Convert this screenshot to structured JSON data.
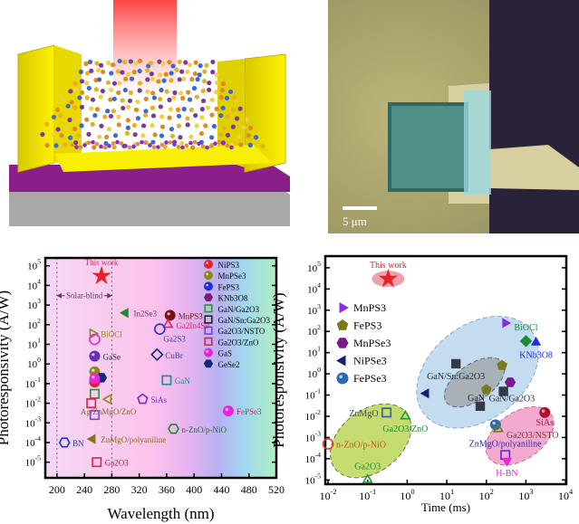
{
  "micrograph": {
    "scale_bar": "5 μm"
  },
  "chart_data": [
    {
      "type": "scatter",
      "title": "",
      "xlabel": "Wavelength (nm)",
      "ylabel": "Photoresponsivity (A/W)",
      "xscale": "linear",
      "yscale": "log",
      "xlim": [
        183,
        520
      ],
      "ylim_log10": [
        -5.8,
        5.4
      ],
      "xticks": [
        "200",
        "240",
        "280",
        "320",
        "360",
        "400",
        "440",
        "480",
        "520"
      ],
      "xtick_values": [
        200,
        240,
        280,
        320,
        360,
        400,
        440,
        480,
        520
      ],
      "yticks": [
        "10^5",
        "10^4",
        "10^3",
        "10^2",
        "10^1",
        "10^0",
        "10^-1",
        "10^-2",
        "10^-3",
        "10^-4",
        "10^-5"
      ],
      "ytick_values": [
        5,
        4,
        3,
        2,
        1,
        0,
        -1,
        -2,
        -3,
        -4,
        -5
      ],
      "annotation": {
        "text": "Solar-blind",
        "from": 200,
        "to": 280,
        "y": 3000
      },
      "legend": {
        "placement": "top-right",
        "entries": [
          {
            "label": "NiPS3",
            "shape": "circle",
            "color": "#e8202a",
            "fill": true
          },
          {
            "label": "MnPSe3",
            "shape": "circle",
            "color": "#8c8a1c",
            "fill": true
          },
          {
            "label": "FePS3",
            "shape": "circle",
            "color": "#1f2fe0",
            "fill": true
          },
          {
            "label": "KNb3O8",
            "shape": "hex",
            "color": "#7a1a7a",
            "fill": true
          },
          {
            "label": "GaN/Ga2O3",
            "shape": "square",
            "color": "#1f9a30",
            "fill": false
          },
          {
            "label": "GaN/Sn:Ga2O3",
            "shape": "square",
            "color": "#222222",
            "fill": false
          },
          {
            "label": "Ga2O3/NSTO",
            "shape": "square",
            "color": "#7b3fe0",
            "fill": false
          },
          {
            "label": "Ga2O3/ZnO",
            "shape": "square",
            "color": "#e0204a",
            "fill": false
          },
          {
            "label": "GaS",
            "shape": "circle",
            "color": "#ee22dd",
            "fill": true
          },
          {
            "label": "GeSe2",
            "shape": "hex",
            "color": "#14287a",
            "fill": true
          }
        ]
      },
      "points": [
        {
          "label": "This work",
          "x": 265,
          "y": 30000,
          "shape": "star",
          "color": "#e8202a",
          "fill": true,
          "label_pos": "top",
          "label_color": "#c0306a"
        },
        {
          "label": "In2Se3",
          "x": 300,
          "y": 400,
          "shape": "tri-left",
          "color": "#1f8a2a",
          "fill": true,
          "label_pos": "right",
          "label_color": "#7a2a7a"
        },
        {
          "label": "MnPS3",
          "x": 365,
          "y": 300,
          "shape": "circle",
          "color": "#7a1010",
          "fill": true,
          "label_pos": "right",
          "label_color": "#7a1010"
        },
        {
          "label": "Ga2In4S9",
          "x": 362,
          "y": 100,
          "shape": "tri-up",
          "color": "#e0206a",
          "fill": false,
          "label_pos": "right",
          "label_color": "#e0206a"
        },
        {
          "label": "Ga2S3",
          "x": 350,
          "y": 60,
          "shape": "circle",
          "color": "#1f2fe0",
          "fill": false,
          "label_pos": "below-right",
          "label_color": "#3040a0"
        },
        {
          "label": "BiOCl",
          "x": 252,
          "y": 35,
          "shape": "tri-right",
          "color": "#8c8a1c",
          "fill": false,
          "label_pos": "right",
          "label_color": "#8c8a1c"
        },
        {
          "label": "",
          "x": 255,
          "y": 18,
          "shape": "circle",
          "color": "#ee22dd",
          "fill": false
        },
        {
          "label": "GaSe",
          "x": 255,
          "y": 2.5,
          "shape": "circle",
          "color": "#6a2ac0",
          "fill": true,
          "label_pos": "right",
          "label_color": "#222244"
        },
        {
          "label": "CuBr",
          "x": 346,
          "y": 3,
          "shape": "diamond",
          "color": "#14287a",
          "fill": false,
          "label_pos": "right",
          "label_color": "#3040a0"
        },
        {
          "label": "",
          "x": 255,
          "y": 0.4,
          "shape": "circle",
          "color": "#8c8a1c",
          "fill": true
        },
        {
          "label": "",
          "x": 265,
          "y": 0.2,
          "shape": "hex",
          "color": "#14287a",
          "fill": true
        },
        {
          "label": "",
          "x": 255,
          "y": 0.12,
          "shape": "circle",
          "color": "#e8202a",
          "fill": true
        },
        {
          "label": "",
          "x": 255,
          "y": 0.18,
          "shape": "circle",
          "color": "#ee22dd",
          "fill": true
        },
        {
          "label": "GaN",
          "x": 360,
          "y": 0.15,
          "shape": "square",
          "color": "#1f8a8a",
          "fill": false,
          "label_pos": "right",
          "label_color": "#1f8a8a"
        },
        {
          "label": "",
          "x": 255,
          "y": 0.03,
          "shape": "square",
          "color": "#1f9a30",
          "fill": false
        },
        {
          "label": "",
          "x": 250,
          "y": 0.01,
          "shape": "square",
          "color": "#e0204a",
          "fill": false
        },
        {
          "label": "Ag/ZnMgO/ZnO",
          "x": 275,
          "y": 0.016,
          "shape": "tri-left",
          "color": "#8c8a1c",
          "fill": false,
          "label_pos": "below",
          "label_color": "#8c6a1c"
        },
        {
          "label": "SiAs",
          "x": 325,
          "y": 0.016,
          "shape": "pentagon",
          "color": "#6a2ae0",
          "fill": false,
          "label_pos": "right",
          "label_color": "#6a2ae0"
        },
        {
          "label": "",
          "x": 255,
          "y": 0.0025,
          "shape": "square",
          "color": "#7b3fe0",
          "fill": false
        },
        {
          "label": "FePSe3",
          "x": 450,
          "y": 0.004,
          "shape": "circle",
          "color": "#ee22dd",
          "fill": true,
          "label_pos": "right",
          "label_color": "#e0206a"
        },
        {
          "label": "n-ZnO/p-NiO",
          "x": 370,
          "y": 0.0005,
          "shape": "hex",
          "color": "#1f8a2a",
          "fill": false,
          "label_pos": "right",
          "label_color": "#1f6a2a"
        },
        {
          "label": "ZnMgO/polyaniline",
          "x": 252,
          "y": 0.00015,
          "shape": "tri-left",
          "color": "#7a7a10",
          "fill": true,
          "label_pos": "right",
          "label_color": "#8c6a1c"
        },
        {
          "label": "BN",
          "x": 211,
          "y": 0.0001,
          "shape": "hex",
          "color": "#1f2fe0",
          "fill": false,
          "label_pos": "right",
          "label_color": "#1f2fe0"
        },
        {
          "label": "Ga2O3",
          "x": 258,
          "y": 1e-05,
          "shape": "square",
          "color": "#e0204a",
          "fill": false,
          "label_pos": "right",
          "label_color": "#a02030"
        }
      ]
    },
    {
      "type": "scatter",
      "title": "",
      "xlabel": "Time (ms)",
      "ylabel": "Photoresponsivity (A/W)",
      "xscale": "log",
      "yscale": "log",
      "xlim_log10": [
        -2.07,
        4.02
      ],
      "ylim_log10": [
        -5.2,
        5.55
      ],
      "xticks": [
        "10^-2",
        "10^-1",
        "10^0",
        "10^1",
        "10^2",
        "10^3",
        "10^4"
      ],
      "xtick_values": [
        -2,
        -1,
        0,
        1,
        2,
        3,
        4
      ],
      "yticks": [
        "10^5",
        "10^4",
        "10^3",
        "10^2",
        "10^1",
        "10^0",
        "10^-1",
        "10^-2",
        "10^-3",
        "10^-4",
        "10^-5"
      ],
      "ytick_values": [
        5,
        4,
        3,
        2,
        1,
        0,
        -1,
        -2,
        -3,
        -4,
        -5
      ],
      "legend": {
        "placement": "top-left",
        "entries": [
          {
            "label": "MnPS3",
            "shape": "tri-right",
            "color": "#8a2ae8",
            "fill": true
          },
          {
            "label": "FePS3",
            "shape": "pentagon",
            "color": "#7a7a1a",
            "fill": true
          },
          {
            "label": "MnPSe3",
            "shape": "hex",
            "color": "#7a1a8a",
            "fill": true
          },
          {
            "label": "NiPSe3",
            "shape": "tri-left",
            "color": "#14207a",
            "fill": true
          },
          {
            "label": "FePSe3",
            "shape": "circle",
            "color": "#2a6ab0",
            "fill": true
          }
        ]
      },
      "points": [
        {
          "label": "This work",
          "x": 0.33,
          "y": 30000,
          "shape": "star",
          "color": "#e8202a",
          "fill": true,
          "label_pos": "top",
          "label_color": "#e8202a"
        },
        {
          "label": "",
          "x": 300,
          "y": 250,
          "shape": "tri-right",
          "color": "#8a2ae8",
          "fill": true
        },
        {
          "label": "BiOCl",
          "x": 1000,
          "y": 35,
          "shape": "diamond",
          "color": "#1f8a3a",
          "fill": true,
          "label_pos": "top",
          "label_color": "#1f8a3a"
        },
        {
          "label": "KNb3O8",
          "x": 1800,
          "y": 30,
          "shape": "tri-up",
          "color": "#1f2fe0",
          "fill": true,
          "label_pos": "below",
          "label_color": "#1f2fe0"
        },
        {
          "label": "",
          "x": 250,
          "y": 2.5,
          "shape": "pentagon",
          "color": "#7a7a1a",
          "fill": true
        },
        {
          "label": "",
          "x": 100,
          "y": 0.18,
          "shape": "pentagon",
          "color": "#7a7a1a",
          "fill": true
        },
        {
          "label": "",
          "x": 400,
          "y": 0.4,
          "shape": "hex",
          "color": "#7a1a8a",
          "fill": true
        },
        {
          "label": "",
          "x": 3,
          "y": 0.12,
          "shape": "tri-left",
          "color": "#14207a",
          "fill": true
        },
        {
          "label": "GaN/Sn:Ga2O3",
          "x": 17,
          "y": 3,
          "shape": "square",
          "color": "#333a44",
          "fill": true,
          "label_pos": "below",
          "label_color": "#222a3a"
        },
        {
          "label": "GaN/Ga2O3",
          "x": 270,
          "y": 0.15,
          "shape": "square",
          "color": "#333a44",
          "fill": true,
          "label_pos": "below",
          "label_color": "#222a3a"
        },
        {
          "label": "GaN",
          "x": 70,
          "y": 0.03,
          "shape": "square",
          "color": "#333a44",
          "fill": true,
          "label_pos": "above-left",
          "label_color": "#222a3a"
        },
        {
          "label": "ZnMgO",
          "x": 0.3,
          "y": 0.015,
          "shape": "square",
          "color": "#3a5a9a",
          "fill": false,
          "label_pos": "left",
          "label_color": "#3a4a6a"
        },
        {
          "label": "Ga2O3/ZnO",
          "x": 0.9,
          "y": 0.01,
          "shape": "tri-up",
          "color": "#1f9a30",
          "fill": false,
          "label_pos": "below",
          "label_color": "#1f8a30"
        },
        {
          "label": "n-ZnO/p-NiO",
          "x": 0.01,
          "y": 0.0005,
          "shape": "circle",
          "color": "#e04020",
          "fill": false,
          "label_pos": "right",
          "label_color": "#c05a20"
        },
        {
          "label": "Ga2O3",
          "x": 0.1,
          "y": 1e-05,
          "shape": "tri-up",
          "color": "#1f9a30",
          "fill": false,
          "label_pos": "top",
          "label_color": "#1f8a30"
        },
        {
          "label": "",
          "x": 170,
          "y": 0.004,
          "shape": "circle",
          "color": "#2a6ab0",
          "fill": true
        },
        {
          "label": "Ga2O3/NSTO",
          "x": 200,
          "y": 0.0025,
          "shape": "tri-up",
          "color": "#7a7a1a",
          "fill": false,
          "label_pos": "right",
          "label_color": "#7a3a3a"
        },
        {
          "label": "SiAs",
          "x": 3000,
          "y": 0.015,
          "shape": "circle",
          "color": "#b01030",
          "fill": true,
          "label_pos": "below",
          "label_color": "#b01030"
        },
        {
          "label": "ZnMgO/polyaniline",
          "x": 300,
          "y": 0.00015,
          "shape": "square",
          "color": "#5a2ae0",
          "fill": false,
          "label_pos": "above",
          "label_color": "#2a2ab0"
        },
        {
          "label": "H-BN",
          "x": 330,
          "y": 8e-05,
          "shape": "tri-down",
          "color": "#ee22dd",
          "fill": true,
          "label_pos": "below",
          "label_color": "#ee22dd"
        }
      ]
    }
  ]
}
